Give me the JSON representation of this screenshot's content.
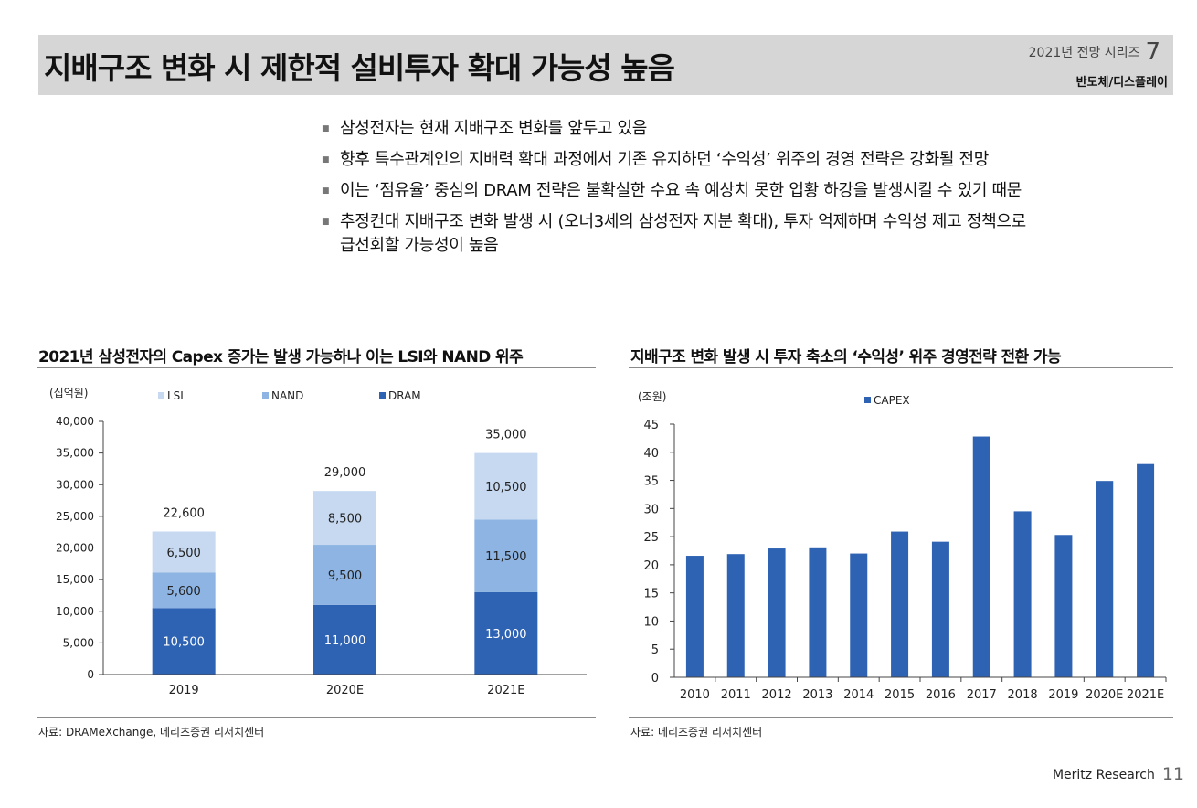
{
  "header": {
    "title": "지배구조 변화 시 제한적 설비투자 확대 가능성 높음",
    "series_label": "2021년 전망 시리즈",
    "series_number": "7",
    "sector": "반도체/디스플레이"
  },
  "bullets": [
    {
      "text": "삼성전자는 현재 지배구조 변화를 앞두고 있음"
    },
    {
      "text": "향후 특수관계인의 지배력 확대 과정에서 기존 유지하던 ‘수익성’ 위주의 경영 전략은 강화될 전망"
    },
    {
      "text": "이는 ‘점유율’ 중심의 DRAM 전략은 불확실한 수요 속 예상치 못한 업황 하강을 발생시킬 수 있기 때문"
    },
    {
      "text": "추정컨대 지배구조 변화 발생 시 (오너3세의 삼성전자 지분 확대), 투자 억제하며 수익성 제고 정책으로",
      "cont": "급선회할 가능성이 높음"
    }
  ],
  "colors": {
    "lsi": "#c6d9f1",
    "nand": "#8db4e2",
    "dram": "#2e62b3",
    "capex": "#2e62b3"
  },
  "chart_data": [
    {
      "type": "bar",
      "stacked": true,
      "title": "2021년 삼성전자의 Capex 증가는 발생 가능하나 이는 LSI와 NAND 위주",
      "unit_label": "(십억원)",
      "categories": [
        "2019",
        "2020E",
        "2021E"
      ],
      "series": [
        {
          "name": "DRAM",
          "values": [
            10500,
            11000,
            13000
          ],
          "labels": [
            "10,500",
            "11,000",
            "13,000"
          ]
        },
        {
          "name": "NAND",
          "values": [
            5600,
            9500,
            11500
          ],
          "labels": [
            "5,600",
            "9,500",
            "11,500"
          ]
        },
        {
          "name": "LSI",
          "values": [
            6500,
            8500,
            10500
          ],
          "labels": [
            "6,500",
            "8,500",
            "10,500"
          ]
        }
      ],
      "legend_order": [
        "LSI",
        "NAND",
        "DRAM"
      ],
      "totals": [
        "22,600",
        "29,000",
        "35,000"
      ],
      "ylim": [
        0,
        40000
      ],
      "yticks": [
        "0",
        "5,000",
        "10,000",
        "15,000",
        "20,000",
        "25,000",
        "30,000",
        "35,000",
        "40,000"
      ],
      "source": "자료: DRAMeXchange, 메리츠증권 리서치센터"
    },
    {
      "type": "bar",
      "title": "지배구조 변화 발생 시  투자 축소의 ‘수익성’  위주 경영전략 전환 가능",
      "unit_label": "(조원)",
      "categories": [
        "2010",
        "2011",
        "2012",
        "2013",
        "2014",
        "2015",
        "2016",
        "2017",
        "2018",
        "2019",
        "2020E",
        "2021E"
      ],
      "series": [
        {
          "name": "CAPEX",
          "values": [
            21.6,
            21.9,
            22.9,
            23.1,
            22.0,
            25.9,
            24.1,
            42.8,
            29.5,
            25.3,
            34.9,
            37.9
          ]
        }
      ],
      "ylim": [
        0,
        45
      ],
      "yticks": [
        "0",
        "5",
        "10",
        "15",
        "20",
        "25",
        "30",
        "35",
        "40",
        "45"
      ],
      "source": "자료: 메리츠증권 리서치센터"
    }
  ],
  "footer": {
    "brand": "Meritz Research",
    "page": "11"
  }
}
